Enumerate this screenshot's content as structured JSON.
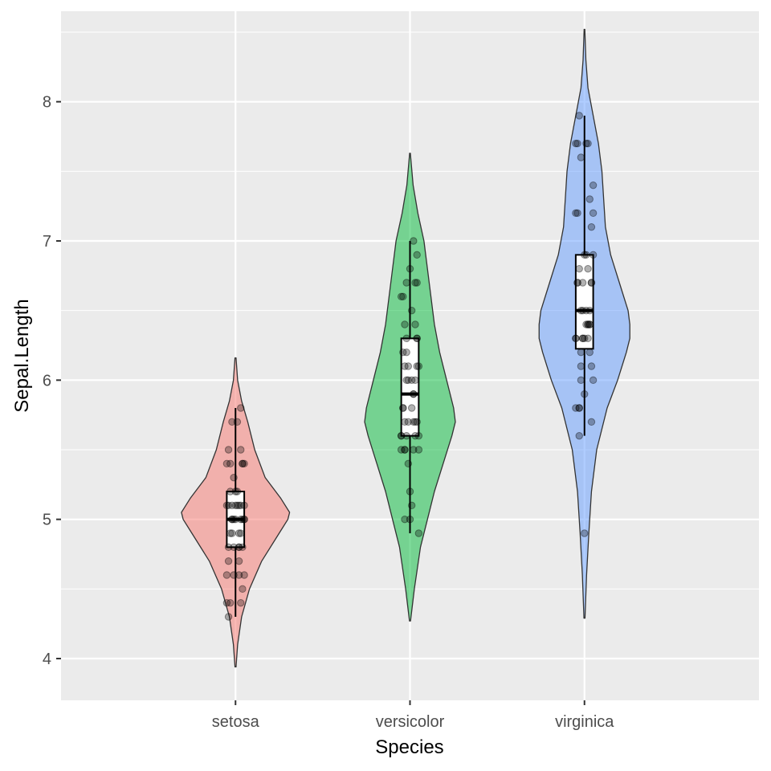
{
  "chart_data": {
    "type": "violin",
    "xlabel": "Species",
    "ylabel": "Sepal.Length",
    "ylim": [
      3.7,
      8.65
    ],
    "y_ticks": [
      4,
      5,
      6,
      7,
      8
    ],
    "categories": [
      "setosa",
      "versicolor",
      "virginica"
    ],
    "grid": true,
    "legend": "none",
    "colors": {
      "panel_background": "#EBEBEB",
      "grid": "#FFFFFF",
      "setosa": "#F8766D",
      "versicolor": "#00BA38",
      "virginica": "#619CFF",
      "outline": "#333333",
      "points": "#000000"
    },
    "series": [
      {
        "category": "setosa",
        "violin_range": [
          3.94,
          6.16
        ],
        "boxplot": {
          "whisker_low": 4.3,
          "q1": 4.8,
          "median": 5.0,
          "q3": 5.2,
          "whisker_high": 5.8
        },
        "density_half_width": [
          [
            3.94,
            0.003
          ],
          [
            4.1,
            0.012
          ],
          [
            4.3,
            0.035
          ],
          [
            4.5,
            0.08
          ],
          [
            4.7,
            0.15
          ],
          [
            4.9,
            0.25
          ],
          [
            5.0,
            0.3
          ],
          [
            5.05,
            0.31
          ],
          [
            5.15,
            0.26
          ],
          [
            5.3,
            0.17
          ],
          [
            5.5,
            0.11
          ],
          [
            5.7,
            0.07
          ],
          [
            5.85,
            0.035
          ],
          [
            6.0,
            0.012
          ],
          [
            6.16,
            0.003
          ]
        ],
        "points": [
          [
            -0.0,
            5.1
          ],
          [
            0.03,
            4.9
          ],
          [
            -0.04,
            4.7
          ],
          [
            0.02,
            4.6
          ],
          [
            -0.02,
            5.0
          ],
          [
            0.05,
            5.4
          ],
          [
            -0.05,
            4.6
          ],
          [
            0.0,
            5.0
          ],
          [
            0.03,
            4.4
          ],
          [
            -0.03,
            4.9
          ],
          [
            0.04,
            5.4
          ],
          [
            -0.01,
            4.8
          ],
          [
            0.02,
            4.8
          ],
          [
            -0.04,
            4.3
          ],
          [
            0.03,
            5.8
          ],
          [
            -0.02,
            5.7
          ],
          [
            0.04,
            5.4
          ],
          [
            -0.05,
            5.1
          ],
          [
            0.01,
            5.7
          ],
          [
            0.05,
            5.1
          ],
          [
            -0.03,
            5.4
          ],
          [
            0.02,
            5.1
          ],
          [
            -0.01,
            4.6
          ],
          [
            0.03,
            5.1
          ],
          [
            -0.04,
            4.8
          ],
          [
            0.05,
            5.0
          ],
          [
            -0.02,
            5.0
          ],
          [
            0.01,
            5.2
          ],
          [
            -0.03,
            5.2
          ],
          [
            0.02,
            4.7
          ],
          [
            0.04,
            4.8
          ],
          [
            -0.05,
            5.4
          ],
          [
            0.0,
            5.2
          ],
          [
            0.03,
            5.5
          ],
          [
            -0.02,
            4.9
          ],
          [
            0.05,
            5.0
          ],
          [
            -0.04,
            5.5
          ],
          [
            0.02,
            4.9
          ],
          [
            -0.03,
            4.4
          ],
          [
            0.01,
            5.1
          ],
          [
            -0.01,
            5.0
          ],
          [
            0.04,
            4.5
          ],
          [
            -0.05,
            4.4
          ],
          [
            0.03,
            5.0
          ],
          [
            -0.02,
            5.1
          ],
          [
            0.02,
            4.8
          ],
          [
            -0.04,
            5.1
          ],
          [
            0.05,
            4.6
          ],
          [
            -0.01,
            5.3
          ],
          [
            0.04,
            5.0
          ]
        ]
      },
      {
        "category": "versicolor",
        "violin_range": [
          4.27,
          7.63
        ],
        "boxplot": {
          "whisker_low": 4.9,
          "q1": 5.6,
          "median": 5.9,
          "q3": 6.3,
          "whisker_high": 7.0
        },
        "density_half_width": [
          [
            4.27,
            0.003
          ],
          [
            4.5,
            0.025
          ],
          [
            4.8,
            0.06
          ],
          [
            5.0,
            0.1
          ],
          [
            5.2,
            0.14
          ],
          [
            5.4,
            0.19
          ],
          [
            5.6,
            0.24
          ],
          [
            5.7,
            0.26
          ],
          [
            5.8,
            0.25
          ],
          [
            6.0,
            0.21
          ],
          [
            6.2,
            0.17
          ],
          [
            6.4,
            0.14
          ],
          [
            6.6,
            0.12
          ],
          [
            6.8,
            0.1
          ],
          [
            7.0,
            0.08
          ],
          [
            7.2,
            0.045
          ],
          [
            7.4,
            0.018
          ],
          [
            7.63,
            0.002
          ]
        ],
        "points": [
          [
            0.02,
            7.0
          ],
          [
            -0.03,
            6.4
          ],
          [
            0.04,
            6.9
          ],
          [
            -0.05,
            5.5
          ],
          [
            0.01,
            6.5
          ],
          [
            0.03,
            5.7
          ],
          [
            -0.02,
            6.3
          ],
          [
            0.05,
            4.9
          ],
          [
            -0.04,
            6.6
          ],
          [
            0.0,
            5.2
          ],
          [
            -0.03,
            5.0
          ],
          [
            0.02,
            5.9
          ],
          [
            -0.01,
            6.0
          ],
          [
            0.04,
            6.1
          ],
          [
            -0.05,
            5.6
          ],
          [
            0.03,
            6.7
          ],
          [
            -0.02,
            5.6
          ],
          [
            0.01,
            5.8
          ],
          [
            -0.04,
            6.2
          ],
          [
            0.05,
            5.6
          ],
          [
            0.02,
            5.9
          ],
          [
            -0.03,
            6.1
          ],
          [
            0.04,
            6.3
          ],
          [
            -0.01,
            6.1
          ],
          [
            0.03,
            6.4
          ],
          [
            -0.05,
            6.6
          ],
          [
            0.0,
            6.8
          ],
          [
            0.04,
            6.7
          ],
          [
            -0.02,
            6.0
          ],
          [
            0.02,
            5.7
          ],
          [
            -0.03,
            5.5
          ],
          [
            0.05,
            5.5
          ],
          [
            -0.04,
            5.8
          ],
          [
            0.01,
            6.0
          ],
          [
            -0.01,
            5.4
          ],
          [
            0.03,
            6.0
          ],
          [
            -0.02,
            6.7
          ],
          [
            0.04,
            6.3
          ],
          [
            -0.05,
            5.6
          ],
          [
            0.02,
            5.5
          ],
          [
            -0.03,
            5.5
          ],
          [
            0.05,
            6.1
          ],
          [
            -0.04,
            5.8
          ],
          [
            0.0,
            5.0
          ],
          [
            0.03,
            5.6
          ],
          [
            -0.01,
            5.7
          ],
          [
            0.04,
            5.7
          ],
          [
            -0.02,
            6.2
          ],
          [
            0.01,
            5.1
          ],
          [
            -0.03,
            5.7
          ]
        ]
      },
      {
        "category": "virginica",
        "violin_range": [
          4.29,
          8.52
        ],
        "boxplot": {
          "whisker_low": 5.6,
          "q1": 6.225,
          "median": 6.5,
          "q3": 6.9,
          "whisker_high": 7.9
        },
        "density_half_width": [
          [
            4.29,
            0.003
          ],
          [
            4.6,
            0.012
          ],
          [
            4.9,
            0.025
          ],
          [
            5.2,
            0.04
          ],
          [
            5.5,
            0.07
          ],
          [
            5.8,
            0.13
          ],
          [
            6.0,
            0.19
          ],
          [
            6.2,
            0.24
          ],
          [
            6.3,
            0.26
          ],
          [
            6.4,
            0.26
          ],
          [
            6.5,
            0.25
          ],
          [
            6.7,
            0.2
          ],
          [
            6.9,
            0.15
          ],
          [
            7.1,
            0.12
          ],
          [
            7.3,
            0.11
          ],
          [
            7.5,
            0.1
          ],
          [
            7.7,
            0.08
          ],
          [
            7.9,
            0.05
          ],
          [
            8.1,
            0.02
          ],
          [
            8.3,
            0.008
          ],
          [
            8.52,
            0.002
          ]
        ],
        "points": [
          [
            0.02,
            6.3
          ],
          [
            -0.03,
            5.8
          ],
          [
            0.04,
            7.1
          ],
          [
            -0.05,
            6.3
          ],
          [
            0.01,
            6.5
          ],
          [
            -0.02,
            7.6
          ],
          [
            0.0,
            4.9
          ],
          [
            0.03,
            7.3
          ],
          [
            -0.04,
            6.7
          ],
          [
            0.05,
            7.2
          ],
          [
            -0.01,
            6.5
          ],
          [
            0.02,
            6.4
          ],
          [
            -0.03,
            6.8
          ],
          [
            0.04,
            5.7
          ],
          [
            -0.05,
            5.8
          ],
          [
            0.03,
            6.4
          ],
          [
            -0.02,
            6.5
          ],
          [
            0.01,
            7.7
          ],
          [
            -0.04,
            7.7
          ],
          [
            0.05,
            6.0
          ],
          [
            0.0,
            6.9
          ],
          [
            -0.03,
            5.6
          ],
          [
            0.02,
            7.7
          ],
          [
            -0.01,
            6.3
          ],
          [
            0.04,
            6.7
          ],
          [
            -0.05,
            7.2
          ],
          [
            0.03,
            6.2
          ],
          [
            -0.02,
            6.1
          ],
          [
            0.01,
            6.4
          ],
          [
            -0.04,
            7.2
          ],
          [
            0.05,
            7.4
          ],
          [
            -0.03,
            7.9
          ],
          [
            0.02,
            6.4
          ],
          [
            -0.01,
            6.3
          ],
          [
            0.04,
            6.1
          ],
          [
            -0.05,
            7.7
          ],
          [
            0.0,
            6.3
          ],
          [
            0.03,
            6.4
          ],
          [
            -0.02,
            6.0
          ],
          [
            0.05,
            6.9
          ],
          [
            -0.04,
            6.7
          ],
          [
            0.01,
            6.9
          ],
          [
            -0.03,
            5.8
          ],
          [
            0.02,
            6.8
          ],
          [
            -0.01,
            6.7
          ],
          [
            0.04,
            6.7
          ],
          [
            -0.05,
            6.3
          ],
          [
            0.03,
            6.5
          ],
          [
            -0.02,
            6.2
          ],
          [
            0.0,
            5.9
          ]
        ]
      }
    ]
  }
}
